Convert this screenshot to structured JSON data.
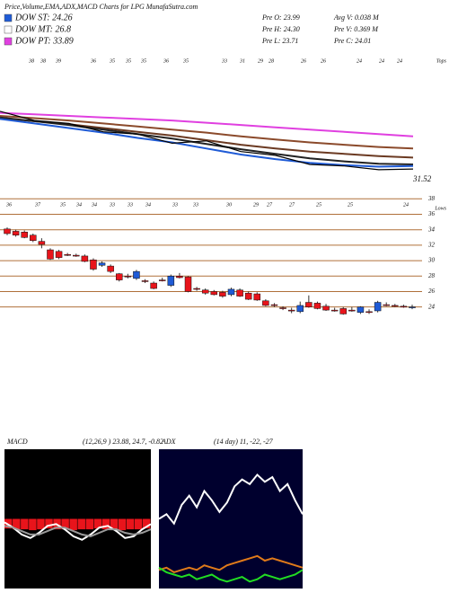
{
  "header": {
    "title": "Price,Volume,EMA,ADX,MACD Charts for LPG MunafaSutra.com",
    "legend": [
      {
        "label": "DOW ST: 24.26",
        "color": "#1f5bd6"
      },
      {
        "label": "DOW MT: 26.8",
        "color": "#ffffff"
      },
      {
        "label": "DOW PT: 33.89",
        "color": "#e040e0"
      }
    ],
    "stats": [
      "Pre O: 23.99",
      "Avg V: 0.038 M",
      "Pre H: 24.30",
      "Pre V: 0.369 M",
      "Pre L: 23.71",
      "Pre C: 24.01"
    ]
  },
  "chart_data": [
    {
      "type": "line",
      "ylim": [
        24,
        40
      ],
      "tops_label": "Tops",
      "lows_label": "Lows",
      "last_label": "31.52",
      "tops": [
        38,
        38,
        39,
        36,
        35,
        35,
        35,
        36,
        35,
        33,
        31,
        29,
        28,
        26,
        26,
        24,
        24,
        24
      ],
      "lows": [
        36,
        37,
        35,
        34,
        34,
        33,
        33,
        34,
        33,
        33,
        30,
        29,
        27,
        27,
        25,
        25,
        24
      ],
      "series": [
        {
          "color": "#e040e0",
          "values": [
            34.0,
            33.8,
            33.6,
            33.4,
            33.2,
            33.0,
            32.7,
            32.4,
            32.1,
            31.8,
            31.5,
            31.2,
            30.9
          ]
        },
        {
          "color": "#8b4a2b",
          "values": [
            33.6,
            33.3,
            33.0,
            32.6,
            32.2,
            31.8,
            31.4,
            30.9,
            30.5,
            30.1,
            29.8,
            29.5,
            29.3
          ]
        },
        {
          "color": "#6b3a22",
          "values": [
            33.3,
            32.9,
            32.5,
            32.0,
            31.5,
            31.0,
            30.4,
            29.8,
            29.3,
            28.9,
            28.6,
            28.3,
            28.1
          ]
        },
        {
          "color": "#222222",
          "values": [
            33.4,
            32.9,
            32.4,
            31.8,
            31.2,
            30.6,
            29.9,
            29.2,
            28.6,
            28.0,
            27.6,
            27.3,
            27.2
          ]
        },
        {
          "color": "#1f5bd6",
          "values": [
            33.2,
            32.6,
            32.0,
            31.4,
            30.7,
            30.1,
            29.3,
            28.5,
            27.9,
            27.4,
            27.1,
            26.9,
            27.0
          ]
        },
        {
          "color": "#000000",
          "values": [
            34.2,
            33.0,
            32.6,
            31.5,
            31.2,
            30.0,
            30.3,
            28.9,
            28.4,
            27.2,
            27.0,
            26.5,
            26.6
          ]
        }
      ]
    },
    {
      "type": "candlestick",
      "ylim": [
        22.8,
        38.5
      ],
      "yticks": [
        38,
        36,
        34,
        32,
        30,
        28,
        26,
        24
      ],
      "up_color": "#1f5bd6",
      "down_color": "#e8141b",
      "grid_color": "#b0703a",
      "open": [
        34.1,
        33.8,
        33.7,
        33.3,
        32.5,
        31.4,
        31.2,
        30.8,
        30.7,
        30.6,
        30.1,
        29.4,
        29.3,
        28.3,
        28.0,
        27.7,
        27.4,
        27.1,
        27.5,
        26.8,
        28.0,
        27.9,
        26.4,
        26.2,
        26.0,
        25.9,
        25.6,
        26.2,
        25.8,
        25.7,
        24.8,
        24.3,
        23.9,
        23.6,
        23.4,
        24.6,
        24.5,
        24.1,
        23.6,
        23.8,
        23.6,
        23.3,
        23.4,
        23.5,
        24.3,
        24.2,
        24.1,
        23.99
      ],
      "high": [
        34.3,
        34.0,
        33.9,
        33.5,
        32.9,
        31.6,
        31.4,
        31.0,
        30.9,
        30.8,
        30.3,
        29.9,
        29.5,
        28.4,
        28.3,
        28.8,
        27.6,
        27.3,
        27.8,
        28.2,
        28.4,
        28.0,
        26.6,
        26.4,
        26.2,
        26.1,
        26.5,
        26.4,
        26.0,
        25.9,
        25.0,
        24.5,
        24.1,
        23.9,
        24.7,
        25.5,
        24.7,
        24.4,
        23.9,
        24.0,
        24.0,
        24.1,
        23.7,
        24.8,
        24.6,
        24.4,
        24.3,
        24.3
      ],
      "low": [
        33.3,
        33.1,
        32.9,
        32.4,
        31.6,
        30.1,
        30.2,
        30.6,
        30.5,
        29.8,
        28.7,
        29.2,
        28.4,
        27.3,
        27.7,
        27.5,
        27.1,
        26.3,
        27.3,
        26.6,
        27.7,
        25.9,
        26.1,
        25.6,
        25.5,
        25.2,
        25.4,
        25.3,
        24.9,
        24.8,
        24.1,
        24.0,
        23.6,
        23.2,
        23.2,
        23.9,
        23.7,
        23.5,
        23.4,
        23.0,
        23.4,
        23.1,
        23.1,
        23.3,
        24.1,
        24.0,
        23.9,
        23.71
      ],
      "close": [
        33.5,
        33.3,
        33.0,
        32.6,
        32.1,
        30.2,
        30.4,
        30.7,
        30.6,
        29.9,
        28.9,
        29.7,
        28.6,
        27.5,
        27.9,
        28.6,
        27.3,
        26.4,
        27.4,
        28.0,
        27.8,
        26.0,
        26.3,
        25.8,
        25.6,
        25.4,
        26.3,
        25.4,
        25.0,
        24.9,
        24.2,
        24.2,
        23.8,
        23.5,
        24.2,
        24.0,
        23.8,
        23.6,
        23.5,
        23.1,
        23.5,
        24.0,
        23.3,
        24.6,
        24.2,
        24.1,
        24.0,
        24.01
      ]
    },
    {
      "type": "macd",
      "title": "MACD",
      "subtitle": "(12,26,9 ) 23.88, 24.7, -0.82",
      "ylim": [
        -4,
        4
      ],
      "series": [
        {
          "color": "#ffffff",
          "values": [
            -0.2,
            -0.5,
            -0.9,
            -1.1,
            -0.8,
            -0.4,
            -0.3,
            -0.6,
            -1.0,
            -1.2,
            -0.9,
            -0.5,
            -0.4,
            -0.7,
            -1.1,
            -1.0,
            -0.6,
            -0.3
          ]
        },
        {
          "color": "#9a9a9a",
          "values": [
            -0.4,
            -0.5,
            -0.7,
            -0.9,
            -0.9,
            -0.7,
            -0.5,
            -0.5,
            -0.7,
            -0.9,
            -1.0,
            -0.8,
            -0.6,
            -0.6,
            -0.8,
            -0.9,
            -0.8,
            -0.6
          ]
        }
      ],
      "histogram": {
        "color": "#e8141b",
        "values": [
          -0.55,
          -0.6,
          -0.6,
          -0.65,
          -0.6,
          -0.55,
          -0.6,
          -0.6,
          -0.65,
          -0.6,
          -0.6,
          -0.55,
          -0.6,
          -0.6,
          -0.65,
          -0.6,
          -0.6,
          -0.55
        ]
      }
    },
    {
      "type": "line",
      "title": "ADX",
      "subtitle": "(14 day) 11, -22, -27",
      "ylim": [
        0,
        60
      ],
      "background": "#00002e",
      "series": [
        {
          "color": "#ffffff",
          "values": [
            30,
            32,
            28,
            36,
            40,
            35,
            42,
            38,
            33,
            37,
            44,
            47,
            45,
            49,
            46,
            48,
            42,
            45,
            38,
            32
          ]
        },
        {
          "color": "#e07a1a",
          "values": [
            8,
            9,
            7,
            8,
            9,
            8,
            10,
            9,
            8,
            10,
            11,
            12,
            13,
            14,
            12,
            13,
            12,
            11,
            10,
            9
          ]
        },
        {
          "color": "#22dd22",
          "values": [
            9,
            7,
            6,
            5,
            6,
            4,
            5,
            6,
            4,
            3,
            4,
            5,
            3,
            4,
            6,
            5,
            4,
            5,
            6,
            8
          ]
        }
      ]
    }
  ]
}
